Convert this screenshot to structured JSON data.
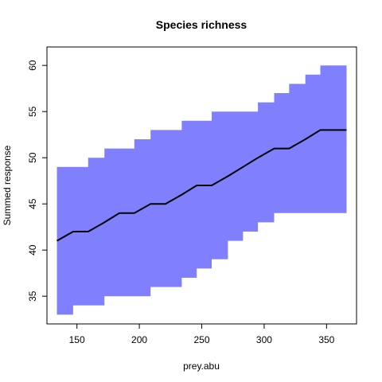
{
  "chart_data": {
    "type": "area",
    "title": "Species richness",
    "xlabel": "prey.abu",
    "ylabel": "Summed response",
    "xlim": [
      126,
      374
    ],
    "ylim": [
      32,
      62
    ],
    "xticks": [
      150,
      200,
      250,
      300,
      350
    ],
    "yticks": [
      35,
      40,
      45,
      50,
      55,
      60
    ],
    "grid": false,
    "colors": {
      "band": "#8080ff",
      "line": "#000000"
    },
    "x": [
      134,
      147,
      159,
      172,
      184,
      196,
      209,
      221,
      234,
      246,
      258,
      271,
      283,
      295,
      308,
      320,
      333,
      345,
      357,
      366
    ],
    "series": [
      {
        "role": "upper",
        "values": [
          49,
          49,
          50,
          51,
          51,
          52,
          53,
          53,
          54,
          54,
          55,
          55,
          55,
          56,
          57,
          58,
          59,
          60,
          60,
          61
        ]
      },
      {
        "role": "mean",
        "values": [
          41,
          42,
          42,
          43,
          44,
          44,
          45,
          45,
          46,
          47,
          47,
          48,
          49,
          50,
          51,
          51,
          52,
          53,
          53,
          53
        ]
      },
      {
        "role": "lower",
        "values": [
          33,
          34,
          34,
          35,
          35,
          35,
          36,
          36,
          37,
          38,
          39,
          41,
          42,
          43,
          44,
          44,
          44,
          44,
          44,
          43
        ]
      }
    ]
  }
}
